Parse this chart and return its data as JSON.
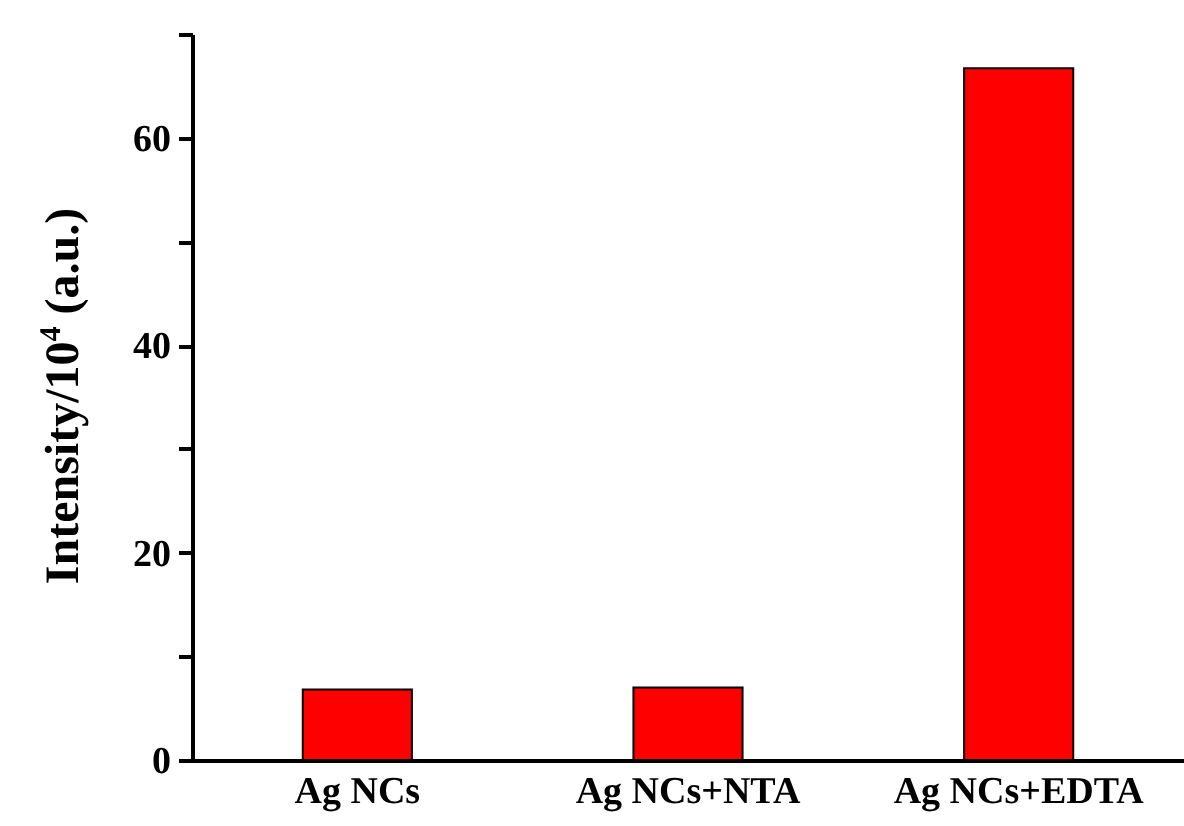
{
  "chart_data": {
    "type": "bar",
    "ylabel": "Intensity/10$^{4}$ (a.u.)",
    "categories": [
      "Ag NCs",
      "Ag NCs+NTA",
      "Ag NCs+EDTA"
    ],
    "values": [
      6.8,
      7.0,
      66.7
    ],
    "color": "#ff0000",
    "ylim": [
      0,
      70
    ],
    "yticks": [
      0,
      {
        "value": 10,
        "label": null
      },
      20,
      {
        "value": 30,
        "label": null
      },
      40,
      {
        "value": 50,
        "label": null
      },
      60,
      {
        "value": 70,
        "label": null
      }
    ],
    "grid": false
  }
}
